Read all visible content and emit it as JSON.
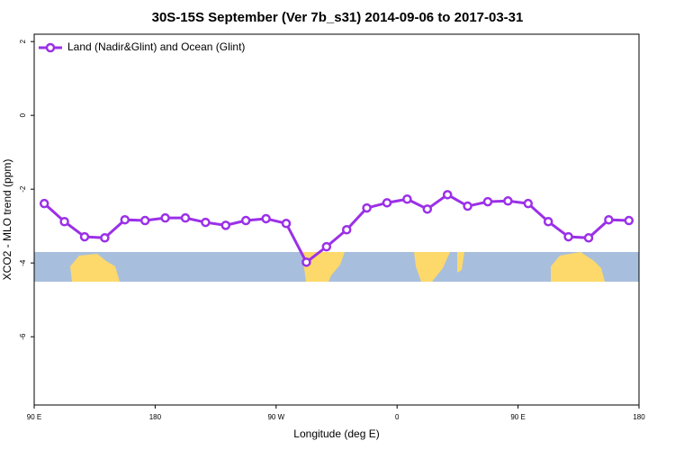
{
  "chart_data": {
    "type": "line",
    "title": "30S-15S September (Ver 7b_s31)   2014-09-06 to 2017-03-31",
    "xlabel": "Longitude (deg E)",
    "ylabel": "XCO2 - MLO trend (ppm)",
    "xlim": [
      90,
      540
    ],
    "xticks": [
      {
        "value": 90,
        "label": "90 E"
      },
      180,
      {
        "value": 270,
        "label": "90 W"
      },
      {
        "value": 360,
        "label": "0"
      },
      {
        "value": 450,
        "label": "90 E"
      },
      {
        "value": 540,
        "label": "180"
      }
    ],
    "ylim": [
      -7.85,
      2.2
    ],
    "yticks": [
      2,
      0,
      -2,
      -4,
      -6
    ],
    "legend": "upper left",
    "x": [
      97.5,
      112.5,
      127.5,
      142.5,
      157.5,
      172.5,
      187.5,
      202.5,
      217.5,
      232.5,
      247.5,
      262.5,
      277.5,
      292.5,
      307.5,
      322.5,
      337.5,
      352.5,
      367.5,
      382.5,
      397.5,
      412.5,
      427.5,
      442.5,
      457.5,
      472.5,
      487.5,
      502.5,
      517.5,
      532.5
    ],
    "series": [
      {
        "name": "Land (Nadir&Glint) and Ocean (Glint)",
        "color": "#9b30e8",
        "values": [
          -2.39,
          -2.88,
          -3.29,
          -3.32,
          -2.83,
          -2.85,
          -2.78,
          -2.78,
          -2.9,
          -2.98,
          -2.85,
          -2.8,
          -2.93,
          -3.98,
          -3.56,
          -3.1,
          -2.51,
          -2.37,
          -2.27,
          -2.54,
          -2.15,
          -2.46,
          -2.34,
          -2.32,
          -2.39,
          -2.88,
          -3.29,
          -3.32,
          -2.83,
          -2.85
        ]
      }
    ]
  }
}
